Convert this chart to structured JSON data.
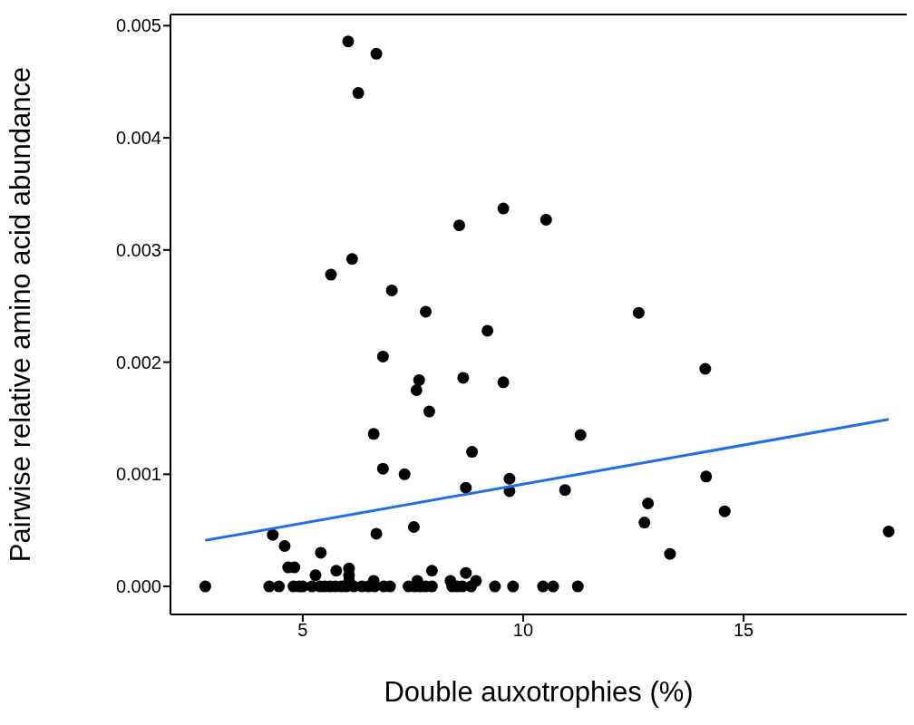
{
  "chart_data": {
    "type": "scatter",
    "xlabel": "Double auxotrophies (%)",
    "ylabel": "Pairwise relative amino acid abundance",
    "xlim": [
      2.0,
      18.7
    ],
    "ylim": [
      -0.00025,
      0.0051
    ],
    "xticks": [
      5,
      10,
      15
    ],
    "yticks": [
      {
        "value": 0,
        "label": "0.000"
      },
      {
        "value": 0.001,
        "label": "0.001"
      },
      {
        "value": 0.002,
        "label": "0.002"
      },
      {
        "value": 0.003,
        "label": "0.003"
      },
      {
        "value": 0.004,
        "label": "0.004"
      },
      {
        "value": 0.005,
        "label": "0.005"
      }
    ],
    "grid": false,
    "marker": "circle",
    "series": [
      {
        "color": "#000000",
        "x": [
          2.79,
          6.03,
          6.67,
          6.26,
          9.55,
          8.55,
          10.52,
          6.12,
          5.64,
          7.02,
          7.79,
          12.62,
          9.19,
          6.82,
          14.13,
          7.64,
          7.58,
          8.64,
          9.55,
          7.87,
          6.61,
          11.3,
          8.84,
          6.82,
          7.31,
          9.69,
          9.69,
          8.7,
          10.95,
          14.15,
          12.83,
          14.57,
          12.75,
          13.33,
          18.29,
          7.52,
          6.67,
          4.32,
          4.59,
          5.41,
          4.67,
          4.81,
          5.29,
          6.05,
          5.76,
          6.05,
          6.61,
          7.93,
          8.7,
          7.6,
          8.35,
          8.93,
          6.05,
          4.24,
          4.46,
          4.79,
          4.92,
          5.0,
          5.21,
          5.39,
          5.5,
          5.62,
          5.74,
          5.87,
          5.99,
          6.16,
          6.34,
          6.49,
          6.63,
          6.84,
          6.98,
          7.4,
          7.54,
          7.67,
          7.79,
          7.93,
          8.39,
          8.5,
          8.62,
          8.82,
          9.36,
          9.77,
          10.45,
          10.68,
          11.24
        ],
        "values": [
          0,
          0.00486,
          0.00475,
          0.0044,
          0.00337,
          0.00322,
          0.00327,
          0.00292,
          0.00278,
          0.00264,
          0.00245,
          0.00244,
          0.00228,
          0.00205,
          0.00194,
          0.00184,
          0.00175,
          0.00186,
          0.00182,
          0.00156,
          0.00136,
          0.00135,
          0.0012,
          0.00105,
          0.001,
          0.00096,
          0.00085,
          0.00088,
          0.00086,
          0.00098,
          0.00074,
          0.00067,
          0.00057,
          0.00029,
          0.00049,
          0.00053,
          0.00047,
          0.00046,
          0.00036,
          0.0003,
          0.00017,
          0.00017,
          0.0001,
          0.00016,
          0.00014,
          0.0001,
          5e-05,
          0.00014,
          0.00012,
          5e-05,
          5e-05,
          5e-05,
          5e-05,
          0,
          0,
          0,
          0,
          0,
          0,
          0,
          0,
          0,
          0,
          0,
          0,
          0,
          0,
          0,
          0,
          0,
          0,
          0,
          0,
          0,
          0,
          0,
          0,
          0,
          0,
          0,
          0,
          0,
          0,
          0,
          0
        ]
      },
      {
        "type": "line",
        "color": "#1f6fe8",
        "marker": "none",
        "x": [
          2.79,
          18.29
        ],
        "values": [
          0.00041,
          0.00149
        ]
      }
    ]
  }
}
